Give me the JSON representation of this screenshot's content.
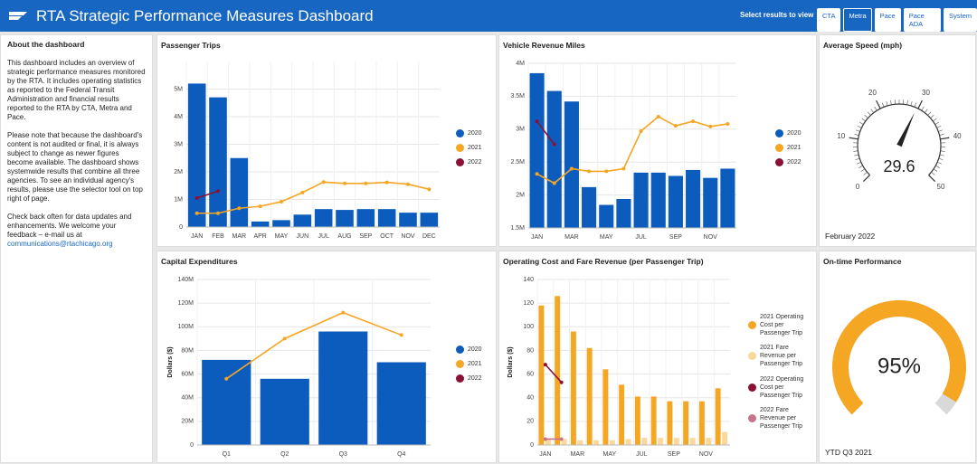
{
  "header": {
    "title": "RTA Strategic Performance Measures Dashboard",
    "selector_label": "Select results to view",
    "buttons": [
      "CTA",
      "Metra",
      "Pace",
      "Pace ADA",
      "System"
    ],
    "selected": 1
  },
  "about": {
    "title": "About the dashboard",
    "paragraphs": [
      "This dashboard includes an overview of strategic performance measures monitored by the RTA.  It includes operating statistics as reported to the Federal Transit Administration and financial results reported to the RTA by CTA, Metra and Pace.",
      "Please note that because the dashboard's content is not audited or final, it is always subject to change as newer figures become available.  The dashboard shows systemwide results that combine all three agencies.  To see an individual agency's results, please use the selector tool on top right of page.",
      "Check back often for data updates and enhancements.  We welcome your feedback – e-mail us at"
    ],
    "link": "communications@rtachicago.org"
  },
  "chart_data": [
    {
      "type": "combo",
      "title": "Passenger Trips",
      "categories": [
        "JAN",
        "FEB",
        "MAR",
        "APR",
        "MAY",
        "JUN",
        "JUL",
        "AUG",
        "SEP",
        "OCT",
        "NOV",
        "DEC"
      ],
      "series": [
        {
          "name": "2020",
          "color": "#0b5cbd",
          "mark": "bar",
          "values": [
            5200000,
            4700000,
            2500000,
            200000,
            250000,
            450000,
            650000,
            620000,
            650000,
            650000,
            520000,
            520000
          ]
        },
        {
          "name": "2021",
          "color": "#f5a623",
          "mark": "line",
          "values": [
            500000,
            500000,
            680000,
            750000,
            920000,
            1250000,
            1630000,
            1580000,
            1580000,
            1620000,
            1550000,
            1370000
          ]
        },
        {
          "name": "2022",
          "color": "#8b1034",
          "mark": "line",
          "values": [
            1050000,
            1300000,
            null,
            null,
            null,
            null,
            null,
            null,
            null,
            null,
            null,
            null
          ]
        }
      ],
      "ylim": [
        0,
        6000000
      ],
      "yticks": [
        0,
        {
          "value": 1000000,
          "label": "1M"
        },
        {
          "value": 2000000,
          "label": "2M"
        },
        {
          "value": 3000000,
          "label": "3M"
        },
        {
          "value": 4000000,
          "label": "4M"
        },
        {
          "value": 5000000,
          "label": "5M"
        }
      ],
      "grid": true
    },
    {
      "type": "combo",
      "title": "Vehicle Revenue Miles",
      "categories": [
        "JAN",
        null,
        "MAR",
        null,
        "MAY",
        null,
        "JUL",
        null,
        "SEP",
        null,
        "NOV",
        null
      ],
      "series": [
        {
          "name": "2020",
          "color": "#0b5cbd",
          "mark": "bar",
          "values": [
            3850000,
            3580000,
            3420000,
            2120000,
            1850000,
            1940000,
            2340000,
            2340000,
            2290000,
            2380000,
            2260000,
            2400000
          ]
        },
        {
          "name": "2021",
          "color": "#f5a623",
          "mark": "line",
          "values": [
            2320000,
            2180000,
            2400000,
            2360000,
            2360000,
            2400000,
            2970000,
            3190000,
            3050000,
            3120000,
            3040000,
            3080000
          ]
        },
        {
          "name": "2022",
          "color": "#8b1034",
          "mark": "line",
          "values": [
            3120000,
            2770000,
            null,
            null,
            null,
            null,
            null,
            null,
            null,
            null,
            null,
            null
          ]
        }
      ],
      "ylim": [
        1500000,
        4000000
      ],
      "yticks": [
        {
          "value": 1500000,
          "label": "1.5M"
        },
        {
          "value": 2000000,
          "label": "2M"
        },
        {
          "value": 2500000,
          "label": "2.5M"
        },
        {
          "value": 3000000,
          "label": "3M"
        },
        {
          "value": 3500000,
          "label": "3.5M"
        },
        {
          "value": 4000000,
          "label": "4M"
        }
      ],
      "grid": true
    },
    {
      "type": "gauge",
      "title": "Average Speed (mph)",
      "value": 29.6,
      "lim": [
        0,
        50
      ],
      "ticks": [
        0,
        10,
        20,
        30,
        40,
        50
      ],
      "color": "#222222",
      "footer": "February 2022"
    },
    {
      "type": "combo",
      "title": "Capital Expenditures",
      "y_label": "Dollars ($)",
      "categories": [
        "Q1",
        "Q2",
        "Q3",
        "Q4"
      ],
      "series": [
        {
          "name": "2020",
          "color": "#0b5cbd",
          "mark": "bar",
          "values": [
            72000000,
            56000000,
            96000000,
            70000000
          ]
        },
        {
          "name": "2021",
          "color": "#f5a623",
          "mark": "line",
          "values": [
            56000000,
            90000000,
            112000000,
            93000000
          ]
        },
        {
          "name": "2022",
          "color": "#8b1034",
          "mark": "line",
          "values": [
            null,
            null,
            null,
            null
          ]
        }
      ],
      "ylim": [
        0,
        140000000
      ],
      "yticks": [
        0,
        {
          "value": 20000000,
          "label": "20M"
        },
        {
          "value": 40000000,
          "label": "40M"
        },
        {
          "value": 60000000,
          "label": "60M"
        },
        {
          "value": 80000000,
          "label": "80M"
        },
        {
          "value": 100000000,
          "label": "100M"
        },
        {
          "value": 120000000,
          "label": "120M"
        },
        {
          "value": 140000000,
          "label": "140M"
        }
      ],
      "grid": true
    },
    {
      "type": "combo",
      "title": "Operating Cost and Fare Revenue (per Passenger Trip)",
      "y_label": "Dollars ($)",
      "categories": [
        "JAN",
        null,
        "MAR",
        null,
        "MAY",
        null,
        "JUL",
        null,
        "SEP",
        null,
        "NOV",
        null
      ],
      "series": [
        {
          "name": "2021 Operating Cost per Passenger Trip",
          "color": "#f5a623",
          "mark": "bar",
          "values": [
            118,
            126,
            96,
            82,
            64,
            51,
            41,
            41,
            37,
            37,
            37,
            48
          ]
        },
        {
          "name": "2021 Fare Revenue per Passenger Trip",
          "color": "#fbd79a",
          "mark": "bar",
          "values": [
            5,
            5,
            4,
            4,
            4,
            5,
            6,
            6,
            6,
            6,
            6,
            11
          ]
        },
        {
          "name": "2022 Operating Cost per Passenger Trip",
          "color": "#8b1034",
          "mark": "line",
          "values": [
            68,
            53,
            null,
            null,
            null,
            null,
            null,
            null,
            null,
            null,
            null,
            null
          ]
        },
        {
          "name": "2022 Fare Revenue per Passenger Trip",
          "color": "#c8738a",
          "mark": "line",
          "values": [
            5,
            5,
            null,
            null,
            null,
            null,
            null,
            null,
            null,
            null,
            null,
            null
          ]
        }
      ],
      "ylim": [
        0,
        140
      ],
      "yticks": [
        0,
        20,
        40,
        60,
        80,
        100,
        120,
        140
      ],
      "grid": true
    },
    {
      "type": "arc",
      "title": "On-time Performance",
      "value": 95,
      "value_label": "95%",
      "lim": [
        0,
        100
      ],
      "color": "#f5a623",
      "footer": "YTD Q3 2021"
    }
  ]
}
